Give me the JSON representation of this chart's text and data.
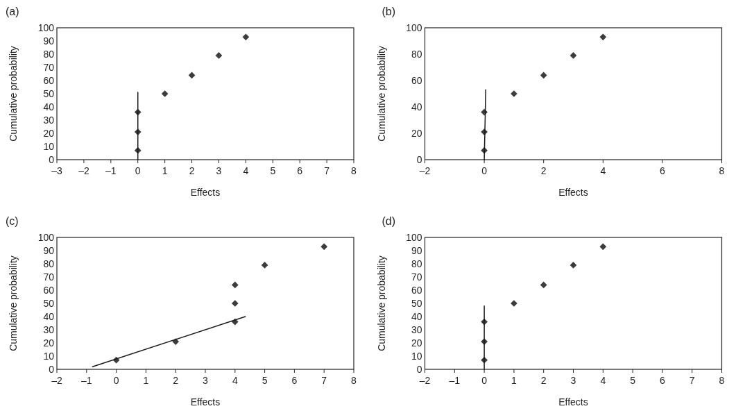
{
  "chart_data": [
    {
      "type": "scatter",
      "title": "(a)",
      "xlabel": "Effects",
      "ylabel": "Cumulative probability",
      "xlim": [
        -3,
        8
      ],
      "xticks": [
        {
          "value": -3,
          "label": "–3"
        },
        {
          "value": -2,
          "label": "–2"
        },
        {
          "value": -1,
          "label": "–1"
        },
        0,
        1,
        2,
        3,
        4,
        5,
        6,
        7,
        8
      ],
      "ylim": [
        0,
        100
      ],
      "yticks": [
        0,
        10,
        20,
        30,
        40,
        50,
        60,
        70,
        80,
        90,
        100
      ],
      "series": [
        {
          "marker": "diamond",
          "color": "#3c3c3c",
          "x": [
            0,
            0,
            0,
            1,
            2,
            3,
            4
          ],
          "values": [
            7,
            21,
            36,
            50,
            64,
            79,
            93
          ]
        },
        {
          "type": "line",
          "color": "#1a1a1a",
          "x": [
            0,
            0
          ],
          "values": [
            0,
            51
          ]
        }
      ]
    },
    {
      "type": "scatter",
      "title": "(b)",
      "xlabel": "Effects",
      "ylabel": "Cumulative probability",
      "xlim": [
        -2,
        8
      ],
      "xticks": [
        {
          "value": -2,
          "label": "–2"
        },
        0,
        2,
        4,
        6,
        8
      ],
      "ylim": [
        0,
        100
      ],
      "yticks": [
        0,
        20,
        40,
        60,
        80,
        100
      ],
      "series": [
        {
          "marker": "diamond",
          "color": "#3c3c3c",
          "x": [
            0,
            0,
            0,
            1,
            2,
            3,
            4
          ],
          "values": [
            7,
            21,
            36,
            50,
            64,
            79,
            93
          ]
        },
        {
          "type": "line",
          "color": "#1a1a1a",
          "x": [
            0,
            0.05
          ],
          "values": [
            0,
            53
          ]
        }
      ]
    },
    {
      "type": "scatter",
      "title": "(c)",
      "xlabel": "Effects",
      "ylabel": "Cumulative probability",
      "xlim": [
        -2,
        8
      ],
      "xticks": [
        {
          "value": -2,
          "label": "–2"
        },
        {
          "value": -1,
          "label": "–1"
        },
        0,
        1,
        2,
        3,
        4,
        5,
        6,
        7,
        8
      ],
      "ylim": [
        0,
        100
      ],
      "yticks": [
        0,
        10,
        20,
        30,
        40,
        50,
        60,
        70,
        80,
        90,
        100
      ],
      "series": [
        {
          "marker": "diamond",
          "color": "#3c3c3c",
          "x": [
            0,
            2,
            4,
            4,
            4,
            5,
            7
          ],
          "values": [
            7,
            21,
            36,
            50,
            64,
            79,
            93
          ]
        },
        {
          "type": "line",
          "color": "#1a1a1a",
          "x": [
            -0.8,
            4.35
          ],
          "values": [
            2,
            40
          ]
        }
      ]
    },
    {
      "type": "scatter",
      "title": "(d)",
      "xlabel": "Effects",
      "ylabel": "Cumulative probability",
      "xlim": [
        -2,
        8
      ],
      "xticks": [
        {
          "value": -2,
          "label": "–2"
        },
        {
          "value": -1,
          "label": "–1"
        },
        0,
        1,
        2,
        3,
        4,
        5,
        6,
        7,
        8
      ],
      "ylim": [
        0,
        100
      ],
      "yticks": [
        0,
        10,
        20,
        30,
        40,
        50,
        60,
        70,
        80,
        90,
        100
      ],
      "series": [
        {
          "marker": "diamond",
          "color": "#3c3c3c",
          "x": [
            0,
            0,
            0,
            1,
            2,
            3,
            4
          ],
          "values": [
            7,
            21,
            36,
            50,
            64,
            79,
            93
          ]
        },
        {
          "type": "line",
          "color": "#1a1a1a",
          "x": [
            0,
            0
          ],
          "values": [
            0,
            48
          ]
        }
      ]
    }
  ]
}
